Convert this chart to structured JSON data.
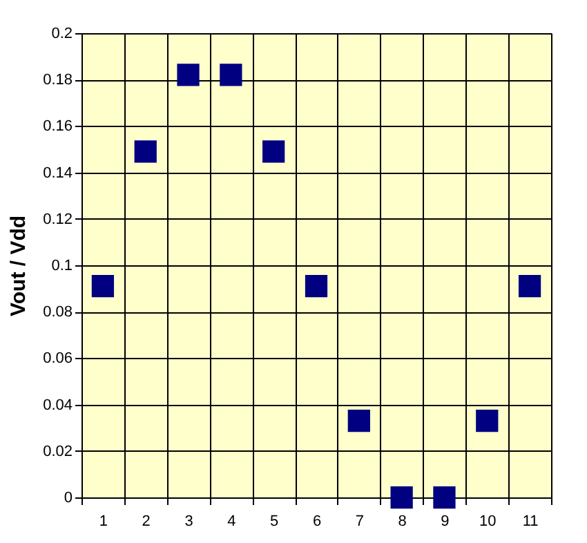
{
  "chart_data": {
    "type": "scatter",
    "ylabel": "Vout / Vdd",
    "categories": [
      "1",
      "2",
      "3",
      "4",
      "5",
      "6",
      "7",
      "8",
      "9",
      "10",
      "11"
    ],
    "values": [
      0.091,
      0.149,
      0.182,
      0.182,
      0.149,
      0.091,
      0.033,
      0,
      0,
      0.033,
      0.091
    ],
    "color": "#000080",
    "marker": "square",
    "ylim": [
      0,
      0.2
    ],
    "yticks": [
      0,
      0.02,
      0.04,
      0.06,
      0.08,
      0.1,
      0.12,
      0.14,
      0.16,
      0.18,
      0.2
    ],
    "grid": true
  }
}
